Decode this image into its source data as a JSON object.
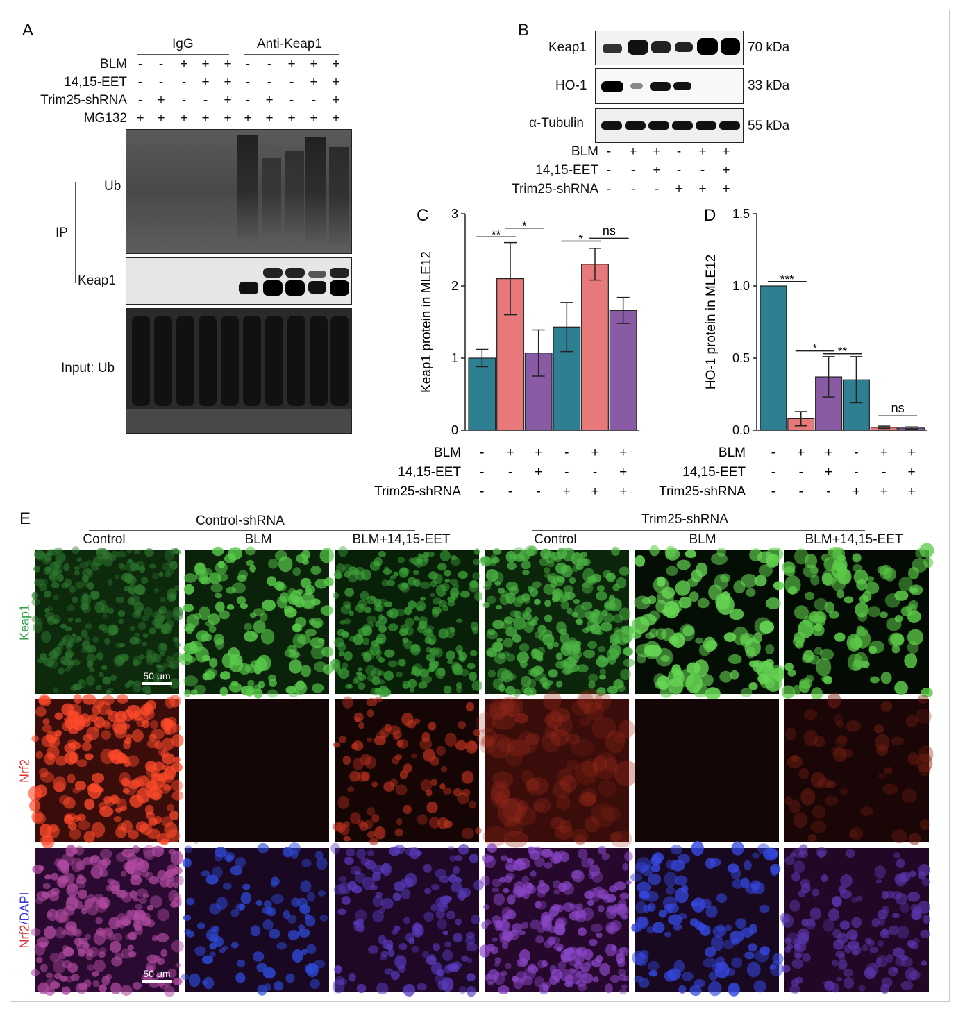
{
  "panelA": {
    "letter": "A",
    "groups": [
      "IgG",
      "Anti-Keap1"
    ],
    "rows": [
      {
        "label": "BLM",
        "signs": [
          "-",
          "-",
          "+",
          "+",
          "+",
          "-",
          "-",
          "+",
          "+",
          "+"
        ]
      },
      {
        "label": "14,15-EET",
        "signs": [
          "-",
          "-",
          "-",
          "+",
          "+",
          "-",
          "-",
          "-",
          "+",
          "+"
        ]
      },
      {
        "label": "Trim25-shRNA",
        "signs": [
          "-",
          "+",
          "-",
          "-",
          "+",
          "-",
          "+",
          "-",
          "-",
          "+"
        ]
      },
      {
        "label": "MG132",
        "signs": [
          "+",
          "+",
          "+",
          "+",
          "+",
          "+",
          "+",
          "+",
          "+",
          "+"
        ]
      }
    ],
    "ip_label": "IP",
    "blot_labels": [
      "Ub",
      "Keap1",
      "Input: Ub"
    ]
  },
  "panelB": {
    "letter": "B",
    "blots": [
      {
        "label": "Keap1",
        "size": "70 kDa"
      },
      {
        "label": "HO-1",
        "size": "33 kDa"
      },
      {
        "label": "α-Tubulin",
        "size": "55 kDa"
      }
    ],
    "rows": [
      {
        "label": "BLM",
        "signs": [
          "-",
          "+",
          "+",
          "-",
          "+",
          "+"
        ]
      },
      {
        "label": "14,15-EET",
        "signs": [
          "-",
          "-",
          "+",
          "-",
          "-",
          "+"
        ]
      },
      {
        "label": "Trim25-shRNA",
        "signs": [
          "-",
          "-",
          "-",
          "+",
          "+",
          "+"
        ]
      }
    ]
  },
  "colors": {
    "teal": "#2f7f93",
    "salmon": "#e8797a",
    "purple": "#8a5ba5"
  },
  "chart_data": [
    {
      "letter": "C",
      "type": "bar",
      "ylabel": "Keap1 protein in MLE12",
      "ylim": [
        0,
        3
      ],
      "yticks": [
        "0",
        "1",
        "2",
        "3"
      ],
      "values": [
        1.0,
        2.1,
        1.07,
        1.43,
        2.3,
        1.66
      ],
      "errors": [
        0.12,
        0.5,
        0.32,
        0.34,
        0.22,
        0.18
      ],
      "bar_colors": [
        "#2f7f93",
        "#e8797a",
        "#8a5ba5",
        "#2f7f93",
        "#e8797a",
        "#8a5ba5"
      ],
      "significance": [
        {
          "from": 0,
          "to": 1,
          "label": "**",
          "y": 2.68
        },
        {
          "from": 1,
          "to": 2,
          "label": "*",
          "y": 2.8
        },
        {
          "from": 3,
          "to": 4,
          "label": "*",
          "y": 2.62
        },
        {
          "from": 4,
          "to": 5,
          "label": "ns",
          "y": 2.66
        }
      ],
      "rows": [
        {
          "label": "BLM",
          "signs": [
            "-",
            "+",
            "+",
            "-",
            "+",
            "+"
          ]
        },
        {
          "label": "14,15-EET",
          "signs": [
            "-",
            "-",
            "+",
            "-",
            "-",
            "+"
          ]
        },
        {
          "label": "Trim25-shRNA",
          "signs": [
            "-",
            "-",
            "-",
            "+",
            "+",
            "+"
          ]
        }
      ]
    },
    {
      "letter": "D",
      "type": "bar",
      "ylabel": "HO-1 protein in MLE12",
      "ylim": [
        0,
        1.5
      ],
      "yticks": [
        "0.0",
        "0.5",
        "1.0",
        "1.5"
      ],
      "values": [
        1.0,
        0.08,
        0.37,
        0.35,
        0.02,
        0.015
      ],
      "errors": [
        0.0,
        0.05,
        0.14,
        0.16,
        0.008,
        0.008
      ],
      "bar_colors": [
        "#2f7f93",
        "#e8797a",
        "#8a5ba5",
        "#2f7f93",
        "#e8797a",
        "#8a5ba5"
      ],
      "significance": [
        {
          "from": 0,
          "to": 1,
          "label": "***",
          "y": 1.03
        },
        {
          "from": 1,
          "to": 2,
          "label": "*",
          "y": 0.55
        },
        {
          "from": 2,
          "to": 3,
          "label": "**",
          "y": 0.53
        },
        {
          "from": 4,
          "to": 5,
          "label": "ns",
          "y": 0.1
        }
      ],
      "rows": [
        {
          "label": "BLM",
          "signs": [
            "-",
            "+",
            "+",
            "-",
            "+",
            "+"
          ]
        },
        {
          "label": "14,15-EET",
          "signs": [
            "-",
            "-",
            "+",
            "-",
            "-",
            "+"
          ]
        },
        {
          "label": "Trim25-shRNA",
          "signs": [
            "-",
            "-",
            "-",
            "+",
            "+",
            "+"
          ]
        }
      ]
    }
  ],
  "panelE": {
    "letter": "E",
    "groups": [
      "Control-shRNA",
      "Trim25-shRNA"
    ],
    "columns": [
      "Control",
      "BLM",
      "BLM+14,15-EET",
      "Control",
      "BLM",
      "BLM+14,15-EET"
    ],
    "rows": [
      {
        "label": "Keap1",
        "color": "#2ea043"
      },
      {
        "label": "Nrf2",
        "color": "#e03030"
      },
      {
        "label": "Nrf2/DAPI",
        "label_a": "Nrf2",
        "label_b": "/DAPI",
        "color_a": "#e03030",
        "color_b": "#3a3ad0"
      }
    ],
    "scalebar": "50 μm"
  }
}
